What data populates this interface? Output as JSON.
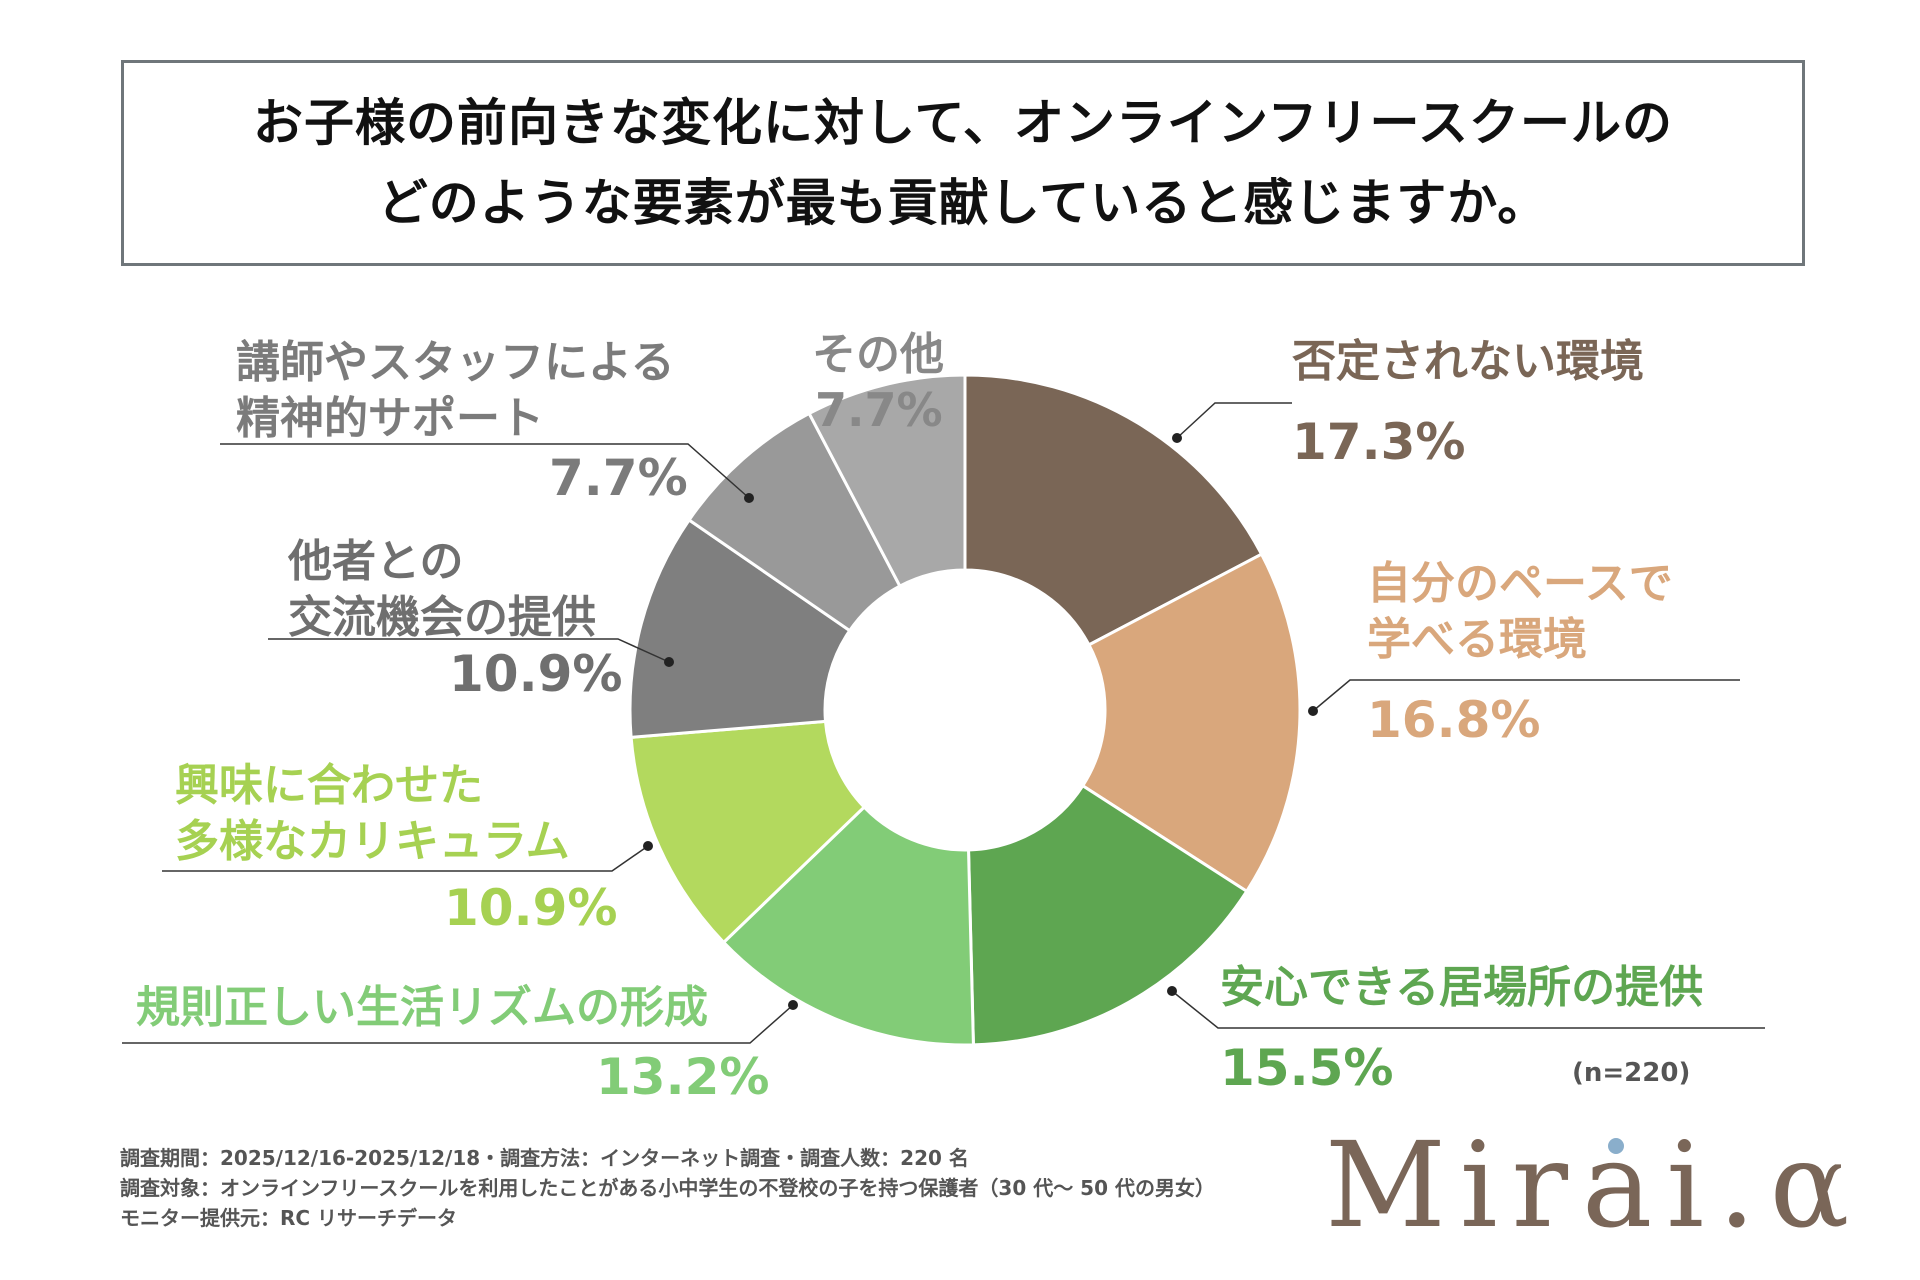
{
  "title": {
    "line1": "お子様の前向きな変化に対して、オンラインフリースクールの",
    "line2": "どのような要素が最も貢献していると感じますか。"
  },
  "chart_data": {
    "type": "pie",
    "title": "お子様の前向きな変化に対して、オンラインフリースクールのどのような要素が最も貢献していると感じますか。",
    "slices": [
      {
        "label": "否定されない環境",
        "value": 17.3,
        "display": "17.3%",
        "color": "#7a6656"
      },
      {
        "label": "自分のペースで学べる環境",
        "value": 16.8,
        "display": "16.8%",
        "color": "#d9a77c"
      },
      {
        "label": "安心できる居場所の提供",
        "value": 15.5,
        "display": "15.5%",
        "color": "#5ea651"
      },
      {
        "label": "規則正しい生活リズムの形成",
        "value": 13.2,
        "display": "13.2%",
        "color": "#82cc77"
      },
      {
        "label": "興味に合わせた多様なカリキュラム",
        "value": 10.9,
        "display": "10.9%",
        "color": "#b3d95e"
      },
      {
        "label": "他者との交流機会の提供",
        "value": 10.9,
        "display": "10.9%",
        "color": "#7f7f7f"
      },
      {
        "label": "講師やスタッフによる精神的サポート",
        "value": 7.7,
        "display": "7.7%",
        "color": "#999999"
      },
      {
        "label": "その他",
        "value": 7.7,
        "display": "7.7%",
        "color": "#a8a8a8"
      }
    ]
  },
  "labels": {
    "s1": {
      "cat_lines": [
        "否定されない環境"
      ],
      "pct": "17.3%",
      "color": "#7a6656"
    },
    "s2": {
      "cat_lines": [
        "自分のペースで",
        "学べる環境"
      ],
      "pct": "16.8%",
      "color": "#d9a77c"
    },
    "s3": {
      "cat_lines": [
        "安心できる居場所の提供"
      ],
      "pct": "15.5%",
      "color": "#5ea651"
    },
    "s4": {
      "cat_lines": [
        "規則正しい生活リズムの形成"
      ],
      "pct": "13.2%",
      "color": "#82cc77"
    },
    "s5": {
      "cat_lines": [
        "興味に合わせた",
        "多様なカリキュラム"
      ],
      "pct": "10.9%",
      "color": "#a6d152"
    },
    "s6": {
      "cat_lines": [
        "他者との",
        "交流機会の提供"
      ],
      "pct": "10.9%",
      "color": "#6f6f6f"
    },
    "s7": {
      "cat_lines": [
        "講師やスタッフによる",
        "精神的サポート"
      ],
      "pct": "7.7%",
      "color": "#7b7b7b"
    },
    "s8": {
      "cat_lines": [
        "その他"
      ],
      "pct": "7.7%",
      "color": "#888888"
    }
  },
  "sample_size": "(n=220)",
  "footnotes": {
    "line1": "調査期間：2025/12/16-2025/12/18・調査方法：インターネット調査・調査人数：220 名",
    "line2": "調査対象：オンラインフリースクールを利用したことがある小中学生の不登校の子を持つ保護者（30 代〜 50 代の男女）",
    "line3": "モニター提供元：RC リサーチデータ"
  },
  "logo": {
    "text": "Mirai.α",
    "color": "#7a6658",
    "dot_color": "#8aaecb"
  }
}
